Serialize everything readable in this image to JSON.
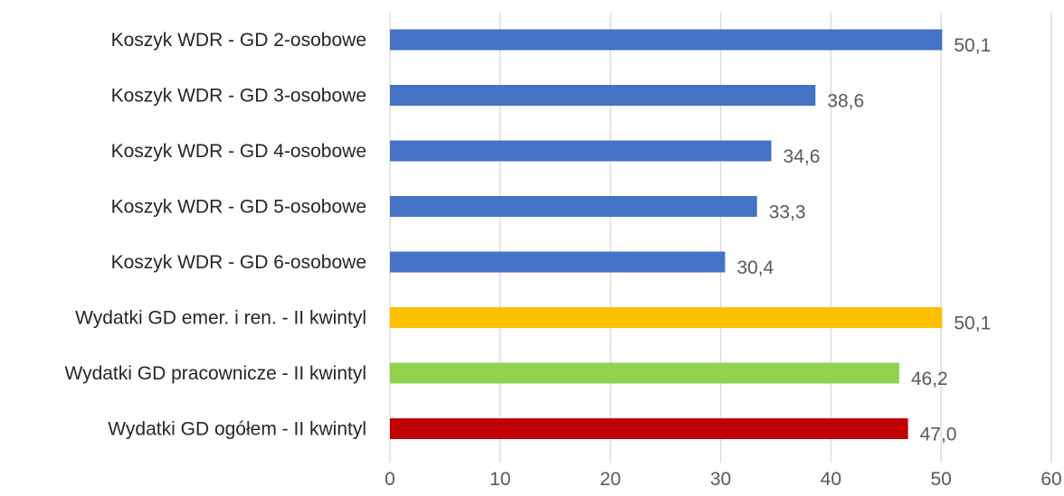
{
  "chart_data": {
    "type": "bar",
    "orientation": "horizontal",
    "categories": [
      "Koszyk WDR - GD 2-osobowe",
      "Koszyk WDR - GD 3-osobowe",
      "Koszyk WDR - GD 4-osobowe",
      "Koszyk WDR - GD 5-osobowe",
      "Koszyk WDR - GD 6-osobowe",
      "Wydatki GD emer. i ren. - II kwintyl",
      "Wydatki GD pracownicze - II kwintyl",
      "Wydatki GD ogółem - II kwintyl"
    ],
    "values": [
      50.1,
      38.6,
      34.6,
      33.3,
      30.4,
      50.1,
      46.2,
      47.0
    ],
    "value_labels": [
      "50,1",
      "38,6",
      "34,6",
      "33,3",
      "30,4",
      "50,1",
      "46,2",
      "47,0"
    ],
    "bar_colors": [
      "#4472C4",
      "#4472C4",
      "#4472C4",
      "#4472C4",
      "#4472C4",
      "#FFC000",
      "#92D050",
      "#C00000"
    ],
    "xlim": [
      0,
      60
    ],
    "xticks": [
      0,
      10,
      20,
      30,
      40,
      50,
      60
    ],
    "xtick_labels": [
      "0",
      "10",
      "20",
      "30",
      "40",
      "50",
      "60"
    ],
    "grid": "vertical",
    "title": "",
    "xlabel": "",
    "ylabel": ""
  }
}
